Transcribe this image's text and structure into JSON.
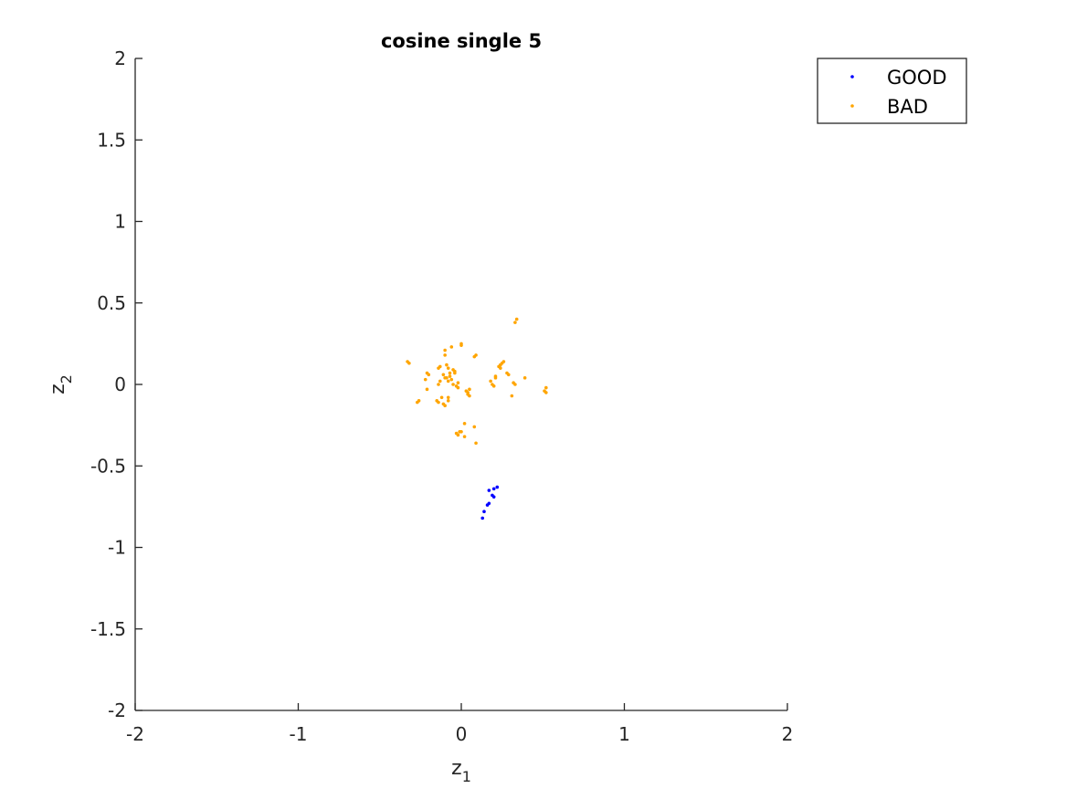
{
  "chart_data": {
    "type": "scatter",
    "title": "cosine single 5",
    "xlabel": {
      "base": "z",
      "sub": "1"
    },
    "ylabel": {
      "base": "z",
      "sub": "2"
    },
    "xlim": [
      -2,
      2
    ],
    "ylim": [
      -2,
      2
    ],
    "xticks": [
      -2,
      -1,
      0,
      1,
      2
    ],
    "yticks": [
      -2,
      -1.5,
      -1,
      -0.5,
      0,
      0.5,
      1,
      1.5,
      2
    ],
    "xtick_labels": [
      "-2",
      "-1",
      "0",
      "1",
      "2"
    ],
    "ytick_labels": [
      "-2",
      "-1.5",
      "-1",
      "-0.5",
      "0",
      "0.5",
      "1",
      "1.5",
      "2"
    ],
    "grid": false,
    "legend_position": "top-right outside",
    "series": [
      {
        "name": "GOOD",
        "color": "#0000ff",
        "points": [
          [
            0.22,
            -0.63
          ],
          [
            0.2,
            -0.64
          ],
          [
            0.17,
            -0.65
          ],
          [
            0.19,
            -0.68
          ],
          [
            0.2,
            -0.69
          ],
          [
            0.17,
            -0.73
          ],
          [
            0.16,
            -0.74
          ],
          [
            0.14,
            -0.78
          ],
          [
            0.13,
            -0.82
          ]
        ]
      },
      {
        "name": "BAD",
        "color": "#ffa500",
        "points": [
          [
            -0.33,
            0.14
          ],
          [
            -0.32,
            0.13
          ],
          [
            -0.27,
            -0.11
          ],
          [
            -0.26,
            -0.1
          ],
          [
            -0.22,
            0.03
          ],
          [
            -0.21,
            0.07
          ],
          [
            -0.2,
            0.06
          ],
          [
            -0.21,
            -0.03
          ],
          [
            -0.15,
            -0.1
          ],
          [
            -0.14,
            -0.11
          ],
          [
            -0.14,
            0.0
          ],
          [
            -0.13,
            0.02
          ],
          [
            -0.14,
            0.1
          ],
          [
            -0.13,
            0.11
          ],
          [
            -0.12,
            -0.08
          ],
          [
            -0.11,
            -0.12
          ],
          [
            -0.11,
            0.06
          ],
          [
            -0.1,
            -0.13
          ],
          [
            -0.1,
            0.18
          ],
          [
            -0.1,
            0.21
          ],
          [
            -0.1,
            0.04
          ],
          [
            -0.09,
            0.04
          ],
          [
            -0.09,
            0.12
          ],
          [
            -0.08,
            0.1
          ],
          [
            -0.08,
            -0.1
          ],
          [
            -0.08,
            -0.08
          ],
          [
            -0.08,
            0.02
          ],
          [
            -0.07,
            0.05
          ],
          [
            -0.07,
            0.07
          ],
          [
            -0.06,
            0.23
          ],
          [
            -0.06,
            0.03
          ],
          [
            -0.05,
            0.09
          ],
          [
            -0.05,
            0.0
          ],
          [
            -0.04,
            0.08
          ],
          [
            -0.04,
            0.07
          ],
          [
            -0.03,
            -0.01
          ],
          [
            -0.02,
            0.01
          ],
          [
            -0.02,
            -0.02
          ],
          [
            -0.03,
            -0.3
          ],
          [
            -0.02,
            -0.31
          ],
          [
            -0.01,
            -0.29
          ],
          [
            0.0,
            0.25
          ],
          [
            0.0,
            0.24
          ],
          [
            0.0,
            -0.29
          ],
          [
            0.02,
            -0.32
          ],
          [
            0.03,
            -0.04
          ],
          [
            0.04,
            -0.06
          ],
          [
            0.04,
            -0.05
          ],
          [
            0.05,
            -0.07
          ],
          [
            0.05,
            -0.03
          ],
          [
            0.02,
            -0.24
          ],
          [
            0.08,
            -0.26
          ],
          [
            0.08,
            0.17
          ],
          [
            0.09,
            0.18
          ],
          [
            0.09,
            -0.36
          ],
          [
            0.18,
            0.02
          ],
          [
            0.19,
            0.0
          ],
          [
            0.2,
            -0.01
          ],
          [
            0.21,
            0.04
          ],
          [
            0.21,
            0.05
          ],
          [
            0.23,
            0.11
          ],
          [
            0.24,
            0.12
          ],
          [
            0.24,
            0.1
          ],
          [
            0.25,
            0.13
          ],
          [
            0.26,
            0.14
          ],
          [
            0.28,
            0.07
          ],
          [
            0.29,
            0.06
          ],
          [
            0.31,
            -0.07
          ],
          [
            0.32,
            0.01
          ],
          [
            0.33,
            0.0
          ],
          [
            0.33,
            0.38
          ],
          [
            0.34,
            0.4
          ],
          [
            0.39,
            0.04
          ],
          [
            0.52,
            -0.02
          ],
          [
            0.52,
            -0.05
          ],
          [
            0.51,
            -0.04
          ]
        ]
      }
    ]
  }
}
